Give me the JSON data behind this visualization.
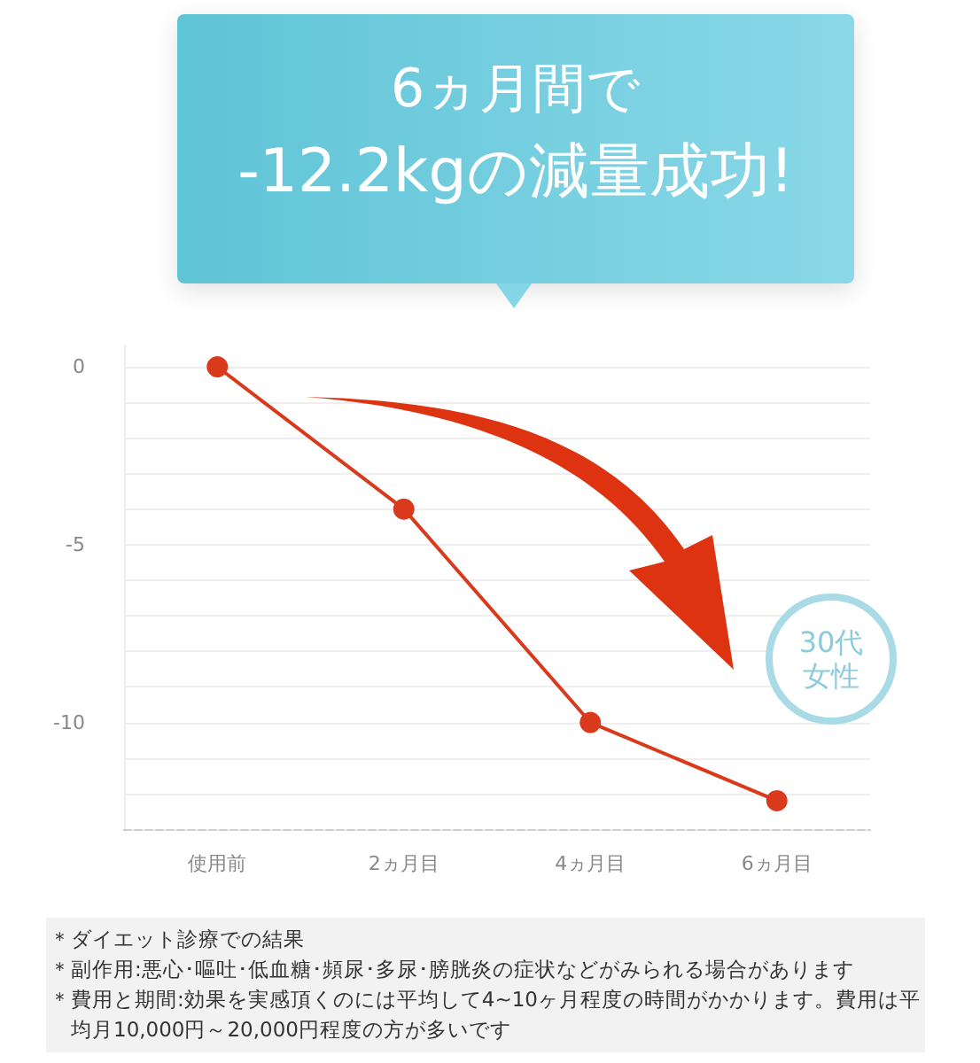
{
  "chart_data": {
    "type": "line",
    "title": "6ヵ月間で\n-12.2kgの減量成功!",
    "categories": [
      "使用前",
      "2ヵ月目",
      "4ヵ月目",
      "6ヵ月目"
    ],
    "series": [
      {
        "color": "#d93a1c",
        "values": [
          0,
          -4,
          -10,
          -12.2
        ]
      }
    ],
    "ylim": [
      -13,
      0.6
    ],
    "yticks": [
      {
        "value": -13,
        "label": null
      },
      {
        "value": -12,
        "label": null
      },
      {
        "value": -11,
        "label": null
      },
      -10,
      {
        "value": -9,
        "label": null
      },
      {
        "value": -8,
        "label": null
      },
      {
        "value": -7,
        "label": null
      },
      {
        "value": -6,
        "label": null
      },
      -5,
      {
        "value": -4,
        "label": null
      },
      {
        "value": -3,
        "label": null
      },
      {
        "value": -2,
        "label": null
      },
      {
        "value": -1,
        "label": null
      },
      0
    ],
    "grid": "y",
    "marker": "circle",
    "line_style": "solid",
    "annotations": [
      {
        "text": "30代女性"
      },
      "＊ダイエット診療での結果",
      "＊副作用:悪心･嘔吐･低血糖･頻尿･多尿･膀胱炎の症状などがみられる場合があります",
      "＊費用と期間:効果を実感頂くのには平均して4~10ヶ月程度の時間がかかります。費用は平均月10,000円～20,000円程度の方が多いです"
    ]
  }
}
